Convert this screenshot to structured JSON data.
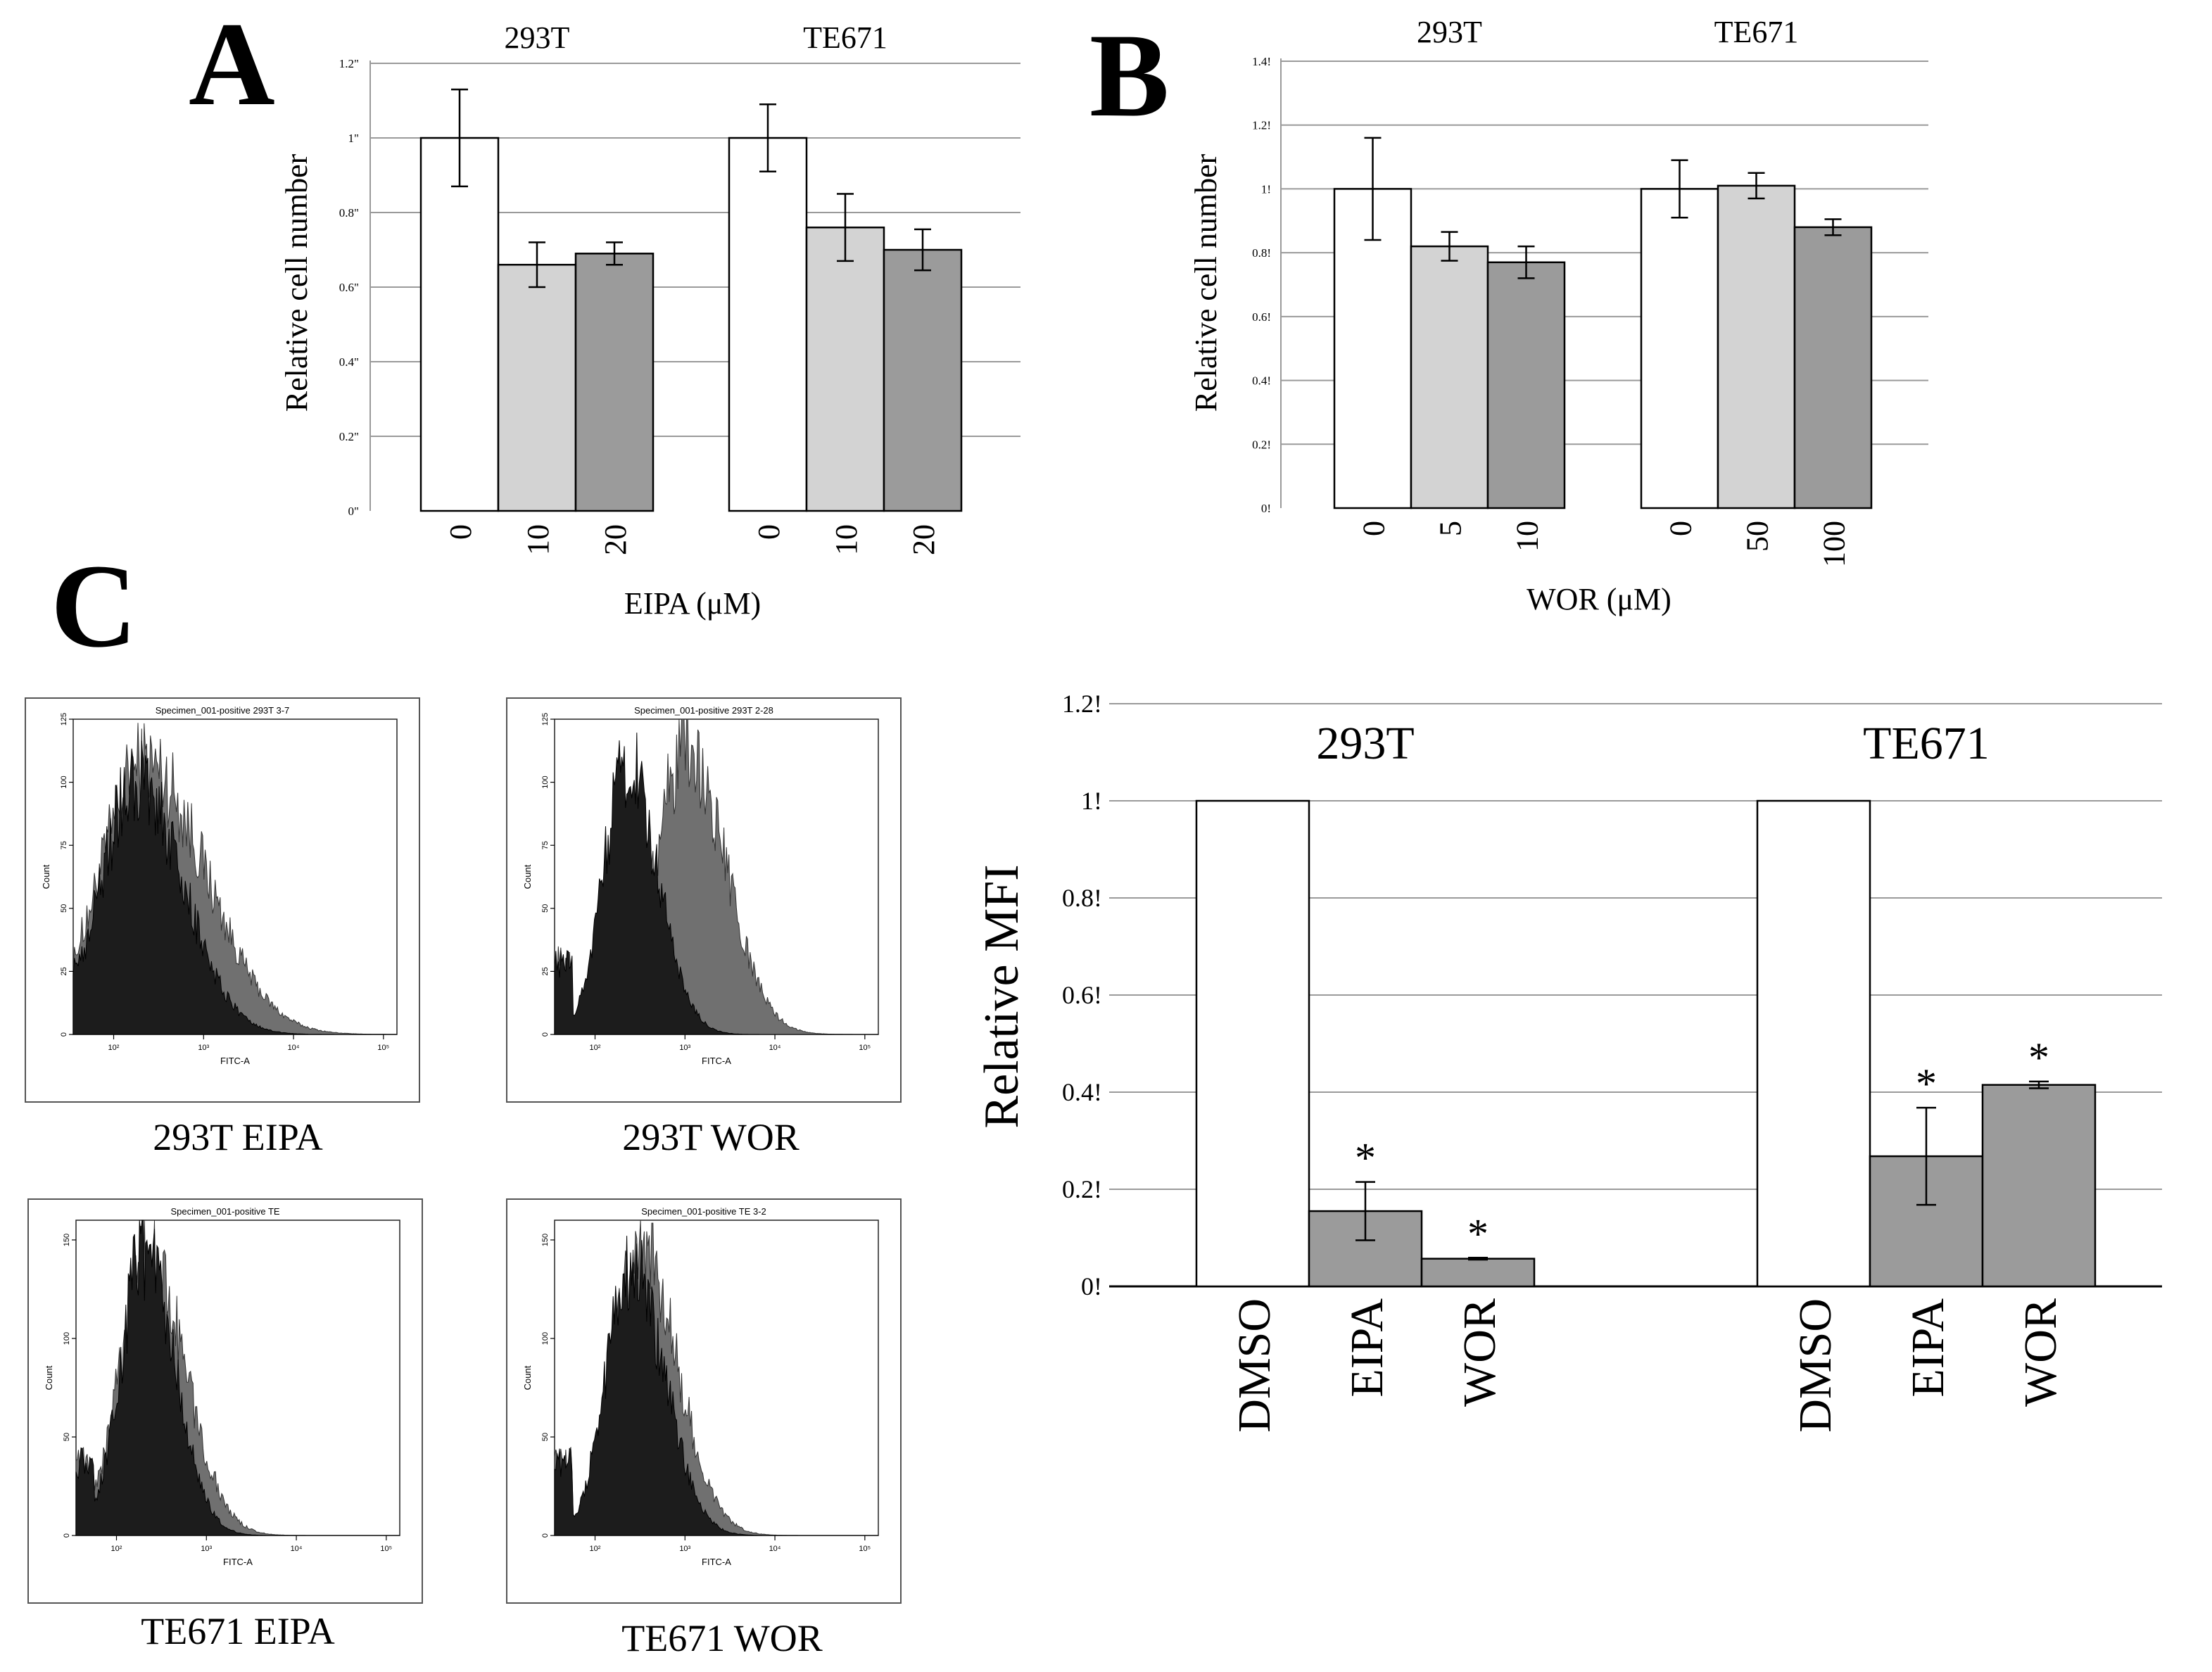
{
  "colors": {
    "dmso": "#ffffff",
    "low": "#d3d3d3",
    "high": "#9b9b9b",
    "grid": "#9a9a9a",
    "hist_dark": "#1c1c1c",
    "hist_gray": "#707070"
  },
  "panel_labels": {
    "a": "A",
    "b": "B",
    "c": "C"
  },
  "chart_data": [
    {
      "id": "A",
      "type": "bar",
      "ylabel": "Relative cell number",
      "xlabel": "EIPA (μM)",
      "ylim": [
        0,
        1.2
      ],
      "yticks": [
        0,
        0.2,
        0.4,
        0.6,
        0.8,
        1,
        1.2
      ],
      "ytick_labels": [
        "0\"",
        "0.2\"",
        "0.4\"",
        "0.6\"",
        "0.8\"",
        "1\"",
        "1.2\""
      ],
      "groups": [
        {
          "name": "293T",
          "bars": [
            {
              "label": "0",
              "value": 1.0,
              "err": 0.13,
              "color": "dmso"
            },
            {
              "label": "10",
              "value": 0.66,
              "err": 0.06,
              "color": "low"
            },
            {
              "label": "20",
              "value": 0.69,
              "err": 0.03,
              "color": "high"
            }
          ]
        },
        {
          "name": "TE671",
          "bars": [
            {
              "label": "0",
              "value": 1.0,
              "err": 0.09,
              "color": "dmso"
            },
            {
              "label": "10",
              "value": 0.76,
              "err": 0.09,
              "color": "low"
            },
            {
              "label": "20",
              "value": 0.7,
              "err": 0.055,
              "color": "high"
            }
          ]
        }
      ]
    },
    {
      "id": "B",
      "type": "bar",
      "ylabel": "Relative cell number",
      "xlabel": "WOR (μM)",
      "ylim": [
        0,
        1.4
      ],
      "yticks": [
        0,
        0.2,
        0.4,
        0.6,
        0.8,
        1,
        1.2,
        1.4
      ],
      "ytick_labels": [
        "0!",
        "0.2!",
        "0.4!",
        "0.6!",
        "0.8!",
        "1!",
        "1.2!",
        "1.4!"
      ],
      "groups": [
        {
          "name": "293T",
          "bars": [
            {
              "label": "0",
              "value": 1.0,
              "err": 0.16,
              "color": "dmso"
            },
            {
              "label": "5",
              "value": 0.82,
              "err": 0.045,
              "color": "low"
            },
            {
              "label": "10",
              "value": 0.77,
              "err": 0.05,
              "color": "high"
            }
          ]
        },
        {
          "name": "TE671",
          "bars": [
            {
              "label": "0",
              "value": 1.0,
              "err": 0.09,
              "color": "dmso"
            },
            {
              "label": "50",
              "value": 1.01,
              "err": 0.04,
              "color": "low"
            },
            {
              "label": "100",
              "value": 0.88,
              "err": 0.025,
              "color": "high"
            }
          ]
        }
      ]
    },
    {
      "id": "C-bar",
      "type": "bar",
      "ylabel": "Relative MFI",
      "ylim": [
        0,
        1.2
      ],
      "yticks": [
        0,
        0.2,
        0.4,
        0.6,
        0.8,
        1,
        1.2
      ],
      "ytick_labels": [
        "0!",
        "0.2!",
        "0.4!",
        "0.6!",
        "0.8!",
        "1!",
        "1.2!"
      ],
      "groups": [
        {
          "name": "293T",
          "bars": [
            {
              "label": "DMSO",
              "value": 1.0,
              "err": 0,
              "color": "dmso",
              "star": ""
            },
            {
              "label": "EIPA",
              "value": 0.155,
              "err": 0.06,
              "color": "high",
              "star": "*"
            },
            {
              "label": "WOR",
              "value": 0.057,
              "err": 0.002,
              "color": "high",
              "star": "*"
            }
          ]
        },
        {
          "name": "TE671",
          "bars": [
            {
              "label": "DMSO",
              "value": 1.0,
              "err": 0,
              "color": "dmso",
              "star": ""
            },
            {
              "label": "EIPA",
              "value": 0.268,
              "err": 0.1,
              "color": "high",
              "star": "*"
            },
            {
              "label": "WOR",
              "value": 0.415,
              "err": 0.007,
              "color": "high",
              "star": "*"
            }
          ]
        }
      ]
    },
    {
      "id": "C-hist",
      "type": "histogram",
      "x_axis_label": "FITC-A",
      "y_axis_label": "Count",
      "x_tick_labels": [
        "10²",
        "10³",
        "10⁴",
        "10⁵"
      ],
      "panels": [
        {
          "title": "Specimen_001-positive 293T 3-7",
          "caption": "293T EIPA",
          "yticks": [
            "0",
            "25",
            "50",
            "75",
            "100",
            "125"
          ],
          "ymax": 125,
          "dark": {
            "peak_log": 2.25,
            "width": 0.45,
            "height": 0.82
          },
          "gray": {
            "peak_log": 2.35,
            "width": 0.58,
            "height": 0.88
          }
        },
        {
          "title": "Specimen_001-positive 293T 2-28",
          "caption": "293T WOR",
          "yticks": [
            "0",
            "25",
            "50",
            "75",
            "100",
            "125"
          ],
          "ymax": 125,
          "dark": {
            "peak_log": 2.35,
            "width": 0.3,
            "height": 0.88
          },
          "gray": {
            "peak_log": 3.0,
            "width": 0.38,
            "height": 0.93
          }
        },
        {
          "title": "Specimen_001-positive TE",
          "caption": "TE671 EIPA",
          "yticks": [
            "0",
            "50",
            "100",
            "150"
          ],
          "ymax": 160,
          "dark": {
            "peak_log": 2.3,
            "width": 0.3,
            "height": 0.92
          },
          "gray": {
            "peak_log": 2.35,
            "width": 0.36,
            "height": 0.9
          }
        },
        {
          "title": "Specimen_001-positive TE 3-2",
          "caption": "TE671 WOR",
          "yticks": [
            "0",
            "50",
            "100",
            "150"
          ],
          "ymax": 160,
          "dark": {
            "peak_log": 2.4,
            "width": 0.32,
            "height": 0.88
          },
          "gray": {
            "peak_log": 2.5,
            "width": 0.36,
            "height": 0.92
          }
        }
      ]
    }
  ]
}
